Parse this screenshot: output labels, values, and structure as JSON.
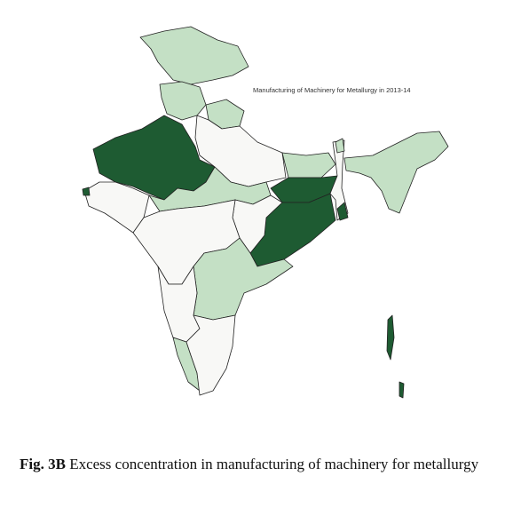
{
  "map_title": "Manufacturing of Machinery for Metallurgy in 2013-14",
  "caption": {
    "label": "Fig. 3B",
    "text": "Excess concentration in manufacturing of machinery for metallurgy"
  }
}
